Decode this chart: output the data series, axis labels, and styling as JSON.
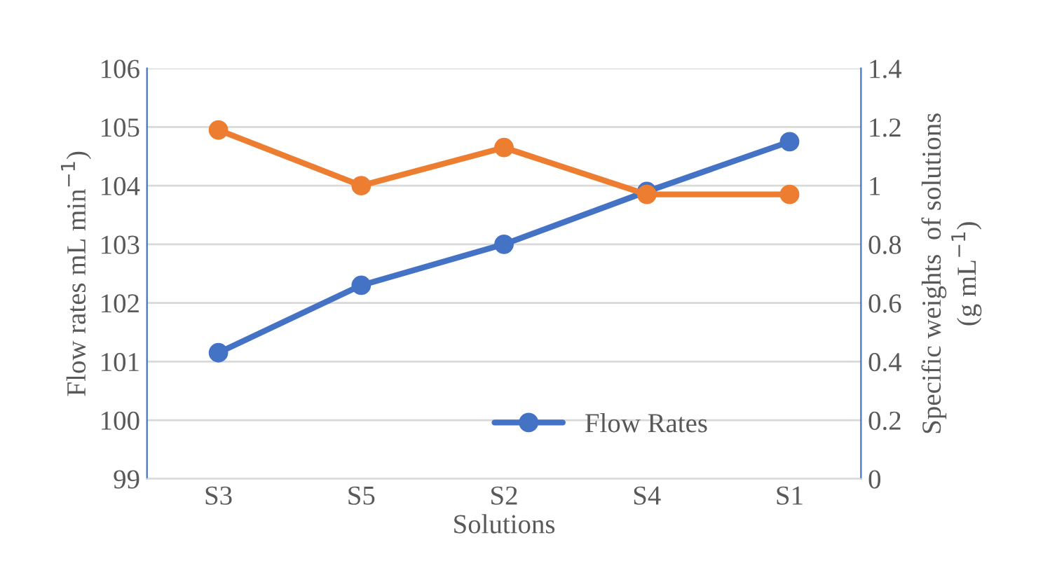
{
  "chart_data": {
    "type": "line",
    "categories": [
      "S3",
      "S5",
      "S2",
      "S4",
      "S1"
    ],
    "series": [
      {
        "name": "Flow Rates",
        "color": "#4472c4",
        "values": [
          101.15,
          102.3,
          103.0,
          103.9,
          104.75
        ]
      },
      {
        "color": "#ed7d31",
        "axis": "y2",
        "values": [
          1.19,
          1.0,
          1.13,
          0.97,
          0.97
        ]
      }
    ],
    "xlabel": "Solutions",
    "ylabel": "Flow rates mL min$^{−1}$)",
    "y2label": "Specific weights  of solutions\n(g mL$^{−1}$)",
    "ylim": [
      99,
      106
    ],
    "yticks": [
      99,
      100,
      101,
      102,
      103,
      104,
      105,
      106
    ],
    "y2lim": [
      0,
      1.4
    ],
    "y2ticks": [
      0,
      {
        "value": 0.2,
        "label": "0.2"
      },
      {
        "value": 0.4,
        "label": "0.4"
      },
      {
        "value": 0.6,
        "label": "0.6"
      },
      {
        "value": 0.8,
        "label": "0.8"
      },
      1,
      {
        "value": 1.2,
        "label": "1.2"
      },
      {
        "value": 1.4,
        "label": "1.4"
      }
    ],
    "grid": "y",
    "legend": "bottom right",
    "marker": "circle",
    "line_style": "solid"
  }
}
